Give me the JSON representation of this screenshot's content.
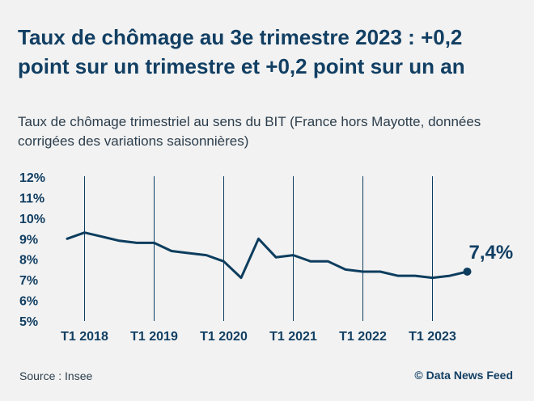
{
  "header": {
    "title": "Taux de chômage au 3e trimestre 2023 : +0,2 point sur un trimestre et +0,2 point sur un an",
    "subtitle": "Taux de chômage trimestriel au sens du BIT (France hors Mayotte, données corrigées des variations saisonnières)"
  },
  "footer": {
    "source": "Source : Insee",
    "credit": "© Data News Feed"
  },
  "colors": {
    "background": "#f2f2f2",
    "line": "#0d3d5e",
    "text": "#123f63"
  },
  "chart_data": {
    "type": "line",
    "title": "",
    "xlabel": "",
    "ylabel": "",
    "ylim": [
      5,
      12
    ],
    "yticks": [
      "12%",
      "11%",
      "10%",
      "9%",
      "8%",
      "7%",
      "6%",
      "5%"
    ],
    "ytick_values": [
      12,
      11,
      10,
      9,
      8,
      7,
      6,
      5
    ],
    "xticks": [
      "T1 2018",
      "T1 2019",
      "T1 2020",
      "T1 2021",
      "T1 2022",
      "T1 2023"
    ],
    "xtick_index": [
      1,
      5,
      9,
      13,
      17,
      21
    ],
    "grid": "vertical lines at T1 of each year",
    "x": [
      "T4 2017",
      "T1 2018",
      "T2 2018",
      "T3 2018",
      "T4 2018",
      "T1 2019",
      "T2 2019",
      "T3 2019",
      "T4 2019",
      "T1 2020",
      "T2 2020",
      "T3 2020",
      "T4 2020",
      "T1 2021",
      "T2 2021",
      "T3 2021",
      "T4 2021",
      "T1 2022",
      "T2 2022",
      "T3 2022",
      "T4 2022",
      "T1 2023",
      "T2 2023",
      "T3 2023"
    ],
    "series": [
      {
        "values": [
          9.0,
          9.3,
          9.1,
          8.9,
          8.8,
          8.8,
          8.4,
          8.3,
          8.2,
          7.9,
          7.1,
          9.0,
          8.1,
          8.2,
          7.9,
          7.9,
          7.5,
          7.4,
          7.4,
          7.2,
          7.2,
          7.1,
          7.2,
          7.4
        ]
      }
    ],
    "annotation": "7,4%"
  }
}
